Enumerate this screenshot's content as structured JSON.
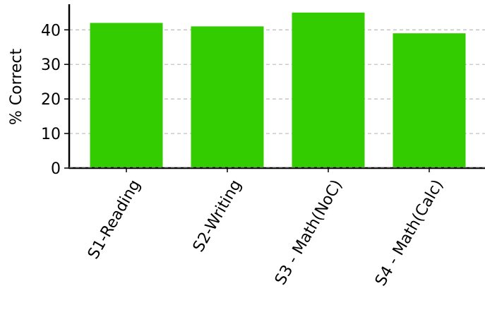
{
  "chart_data": {
    "type": "bar",
    "categories": [
      "S1-Reading",
      "S2-Writing",
      "S3 - Math(NoC)",
      "S4 - Math(Calc)"
    ],
    "values": [
      42,
      41,
      45,
      39
    ],
    "ylabel": "% Correct",
    "xlabel": "",
    "ylim": [
      0,
      47
    ],
    "yticks": [
      0,
      10,
      20,
      30,
      40
    ],
    "grid": "horizontal-dashed",
    "bar_color": "#33cc00",
    "grid_color": "#bbbbbb"
  }
}
